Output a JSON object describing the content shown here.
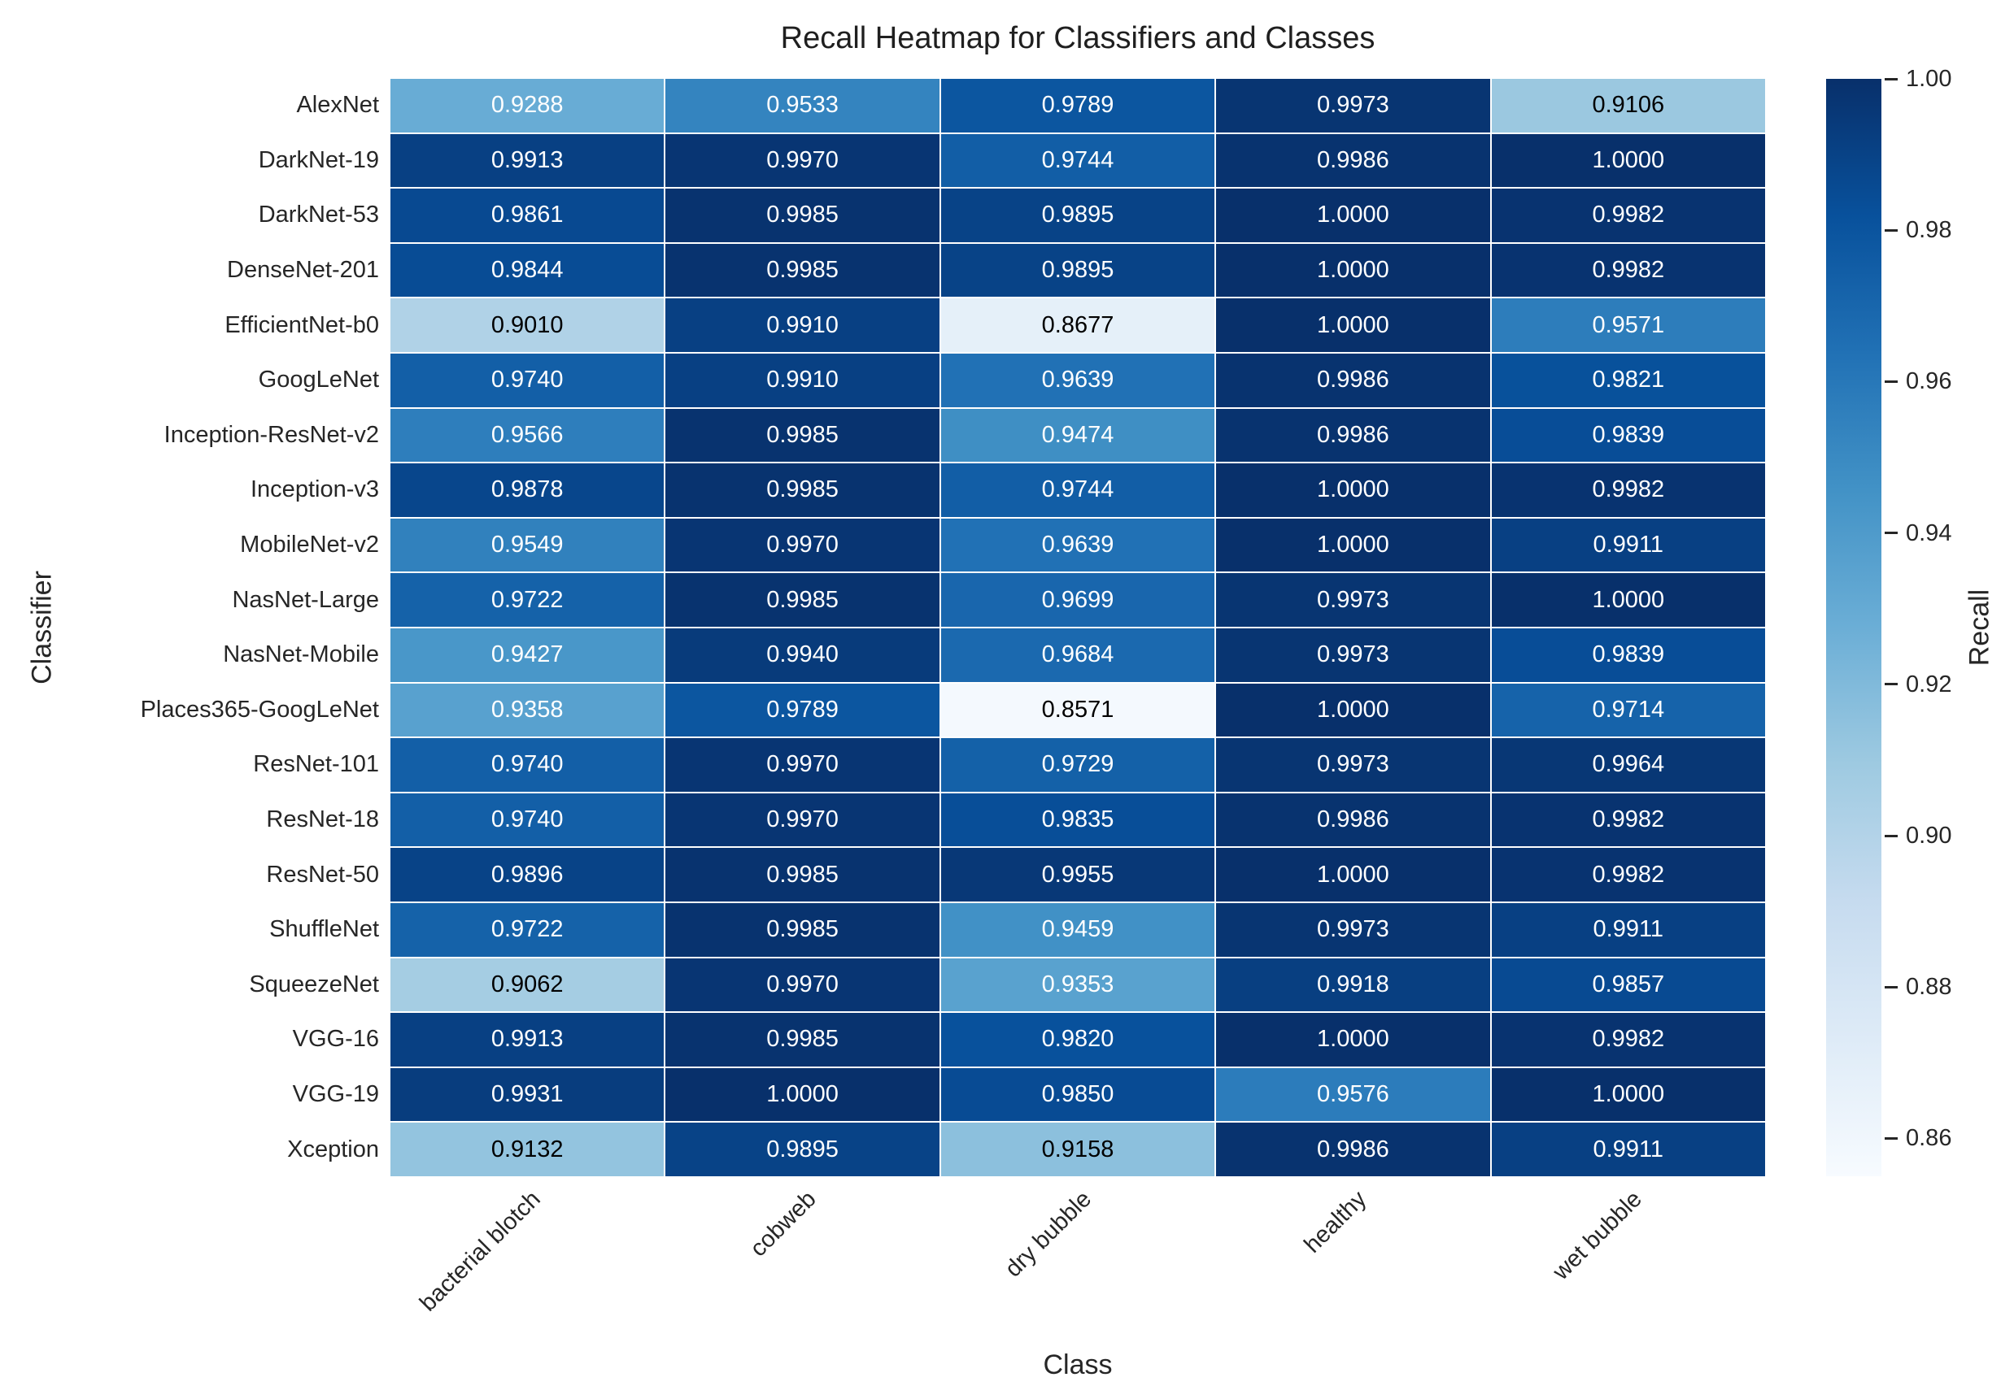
{
  "figure": {
    "background": "#ffffff",
    "text_color": "#262626"
  },
  "chart_data": {
    "type": "heatmap",
    "title": "Recall Heatmap for Classifiers and Classes",
    "xlabel": "Class",
    "ylabel": "Classifier",
    "x_categories": [
      "bacterial blotch",
      "cobweb",
      "dry bubble",
      "healthy",
      "wet bubble"
    ],
    "y_categories": [
      "AlexNet",
      "DarkNet-19",
      "DarkNet-53",
      "DenseNet-201",
      "EfficientNet-b0",
      "GoogLeNet",
      "Inception-ResNet-v2",
      "Inception-v3",
      "MobileNet-v2",
      "NasNet-Large",
      "NasNet-Mobile",
      "Places365-GoogLeNet",
      "ResNet-101",
      "ResNet-18",
      "ResNet-50",
      "ShuffleNet",
      "SqueezeNet",
      "VGG-16",
      "VGG-19",
      "Xception"
    ],
    "values": [
      [
        0.9288,
        0.9533,
        0.9789,
        0.9973,
        0.9106
      ],
      [
        0.9913,
        0.997,
        0.9744,
        0.9986,
        1.0
      ],
      [
        0.9861,
        0.9985,
        0.9895,
        1.0,
        0.9982
      ],
      [
        0.9844,
        0.9985,
        0.9895,
        1.0,
        0.9982
      ],
      [
        0.901,
        0.991,
        0.8677,
        1.0,
        0.9571
      ],
      [
        0.974,
        0.991,
        0.9639,
        0.9986,
        0.9821
      ],
      [
        0.9566,
        0.9985,
        0.9474,
        0.9986,
        0.9839
      ],
      [
        0.9878,
        0.9985,
        0.9744,
        1.0,
        0.9982
      ],
      [
        0.9549,
        0.997,
        0.9639,
        1.0,
        0.9911
      ],
      [
        0.9722,
        0.9985,
        0.9699,
        0.9973,
        1.0
      ],
      [
        0.9427,
        0.994,
        0.9684,
        0.9973,
        0.9839
      ],
      [
        0.9358,
        0.9789,
        0.8571,
        1.0,
        0.9714
      ],
      [
        0.974,
        0.997,
        0.9729,
        0.9973,
        0.9964
      ],
      [
        0.974,
        0.997,
        0.9835,
        0.9986,
        0.9982
      ],
      [
        0.9896,
        0.9985,
        0.9955,
        1.0,
        0.9982
      ],
      [
        0.9722,
        0.9985,
        0.9459,
        0.9973,
        0.9911
      ],
      [
        0.9062,
        0.997,
        0.9353,
        0.9918,
        0.9857
      ],
      [
        0.9913,
        0.9985,
        0.982,
        1.0,
        0.9982
      ],
      [
        0.9931,
        1.0,
        0.985,
        0.9576,
        1.0
      ],
      [
        0.9132,
        0.9895,
        0.9158,
        0.9986,
        0.9911
      ]
    ],
    "cell_value_decimals": 4,
    "colorbar": {
      "label": "Recall",
      "tick_labels": [
        "1.00",
        "0.98",
        "0.96",
        "0.94",
        "0.92",
        "0.90",
        "0.88",
        "0.86"
      ],
      "tick_values": [
        1.0,
        0.98,
        0.96,
        0.94,
        0.92,
        0.9,
        0.88,
        0.86
      ],
      "vmin": 0.855,
      "vmax": 1.0,
      "position": "right"
    },
    "colormap": {
      "name": "Blues",
      "low_to_high_anchors": [
        "#f7fbff",
        "#deebf7",
        "#c6dbef",
        "#9ecae1",
        "#6baed6",
        "#4292c6",
        "#2171b5",
        "#08519c",
        "#08306b"
      ]
    },
    "annotation_text_colors": {
      "light_cells": "#000000",
      "dark_cells": "#ffffff"
    },
    "grid": false
  }
}
